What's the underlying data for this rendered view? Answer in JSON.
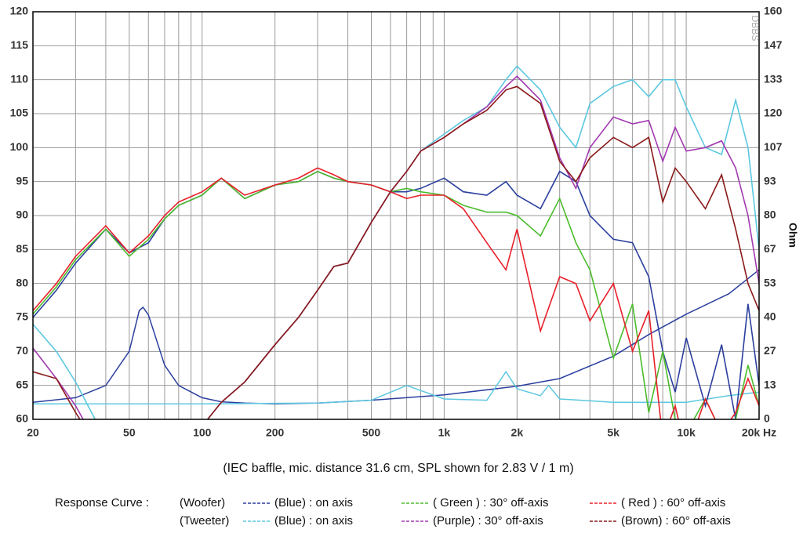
{
  "chart_data": {
    "type": "line",
    "xscale": "log",
    "subtitle": "(IEC baffle, mic. distance 31.6 cm, SPL shown for 2.83 V / 1 m)",
    "watermark": "DBBS",
    "y2label": "Ohm",
    "xlim": [
      20,
      20000
    ],
    "ylim": [
      60,
      120
    ],
    "y2lim": [
      0,
      160
    ],
    "xticks": [
      20,
      50,
      100,
      200,
      500,
      {
        "value": 1000,
        "label": "1k"
      },
      {
        "value": 2000,
        "label": "2k"
      },
      {
        "value": 5000,
        "label": "5k"
      },
      {
        "value": 10000,
        "label": "10k"
      },
      {
        "value": 20000,
        "label": "20k Hz"
      }
    ],
    "xgrid": [
      20,
      30,
      40,
      50,
      60,
      70,
      80,
      90,
      100,
      200,
      300,
      400,
      500,
      600,
      700,
      800,
      900,
      1000,
      2000,
      3000,
      4000,
      5000,
      6000,
      7000,
      8000,
      9000,
      10000,
      20000
    ],
    "yticks": [
      60,
      65,
      70,
      75,
      80,
      85,
      90,
      95,
      100,
      105,
      110,
      115,
      120
    ],
    "y2ticks": [
      0,
      {
        "value": 13.33,
        "label": "13"
      },
      {
        "value": 26.67,
        "label": "27"
      },
      40,
      {
        "value": 53.33,
        "label": "53"
      },
      {
        "value": 66.67,
        "label": "67"
      },
      80,
      {
        "value": 93.33,
        "label": "93"
      },
      {
        "value": 106.67,
        "label": "107"
      },
      120,
      {
        "value": 133.33,
        "label": "133"
      },
      {
        "value": 146.67,
        "label": "147"
      },
      160
    ],
    "grid": true,
    "legend_title": "Response Curve :",
    "legend_groups": [
      "(Woofer)",
      "(Tweeter)"
    ],
    "x": [
      20,
      25,
      30,
      40,
      50,
      60,
      70,
      80,
      100,
      120,
      150,
      200,
      250,
      300,
      350,
      400,
      500,
      600,
      700,
      800,
      1000,
      1200,
      1500,
      1800,
      2000,
      2500,
      3000,
      3500,
      4000,
      5000,
      6000,
      7000,
      8000,
      9000,
      10000,
      12000,
      14000,
      16000,
      18000,
      20000
    ],
    "series": [
      {
        "name": "(Blue)  : on axis",
        "color": "#2b3f9e",
        "values": [
          75,
          79,
          83,
          88,
          84.5,
          86,
          89.5,
          91.5,
          93,
          95.5,
          92.5,
          94.5,
          95,
          96.5,
          95.5,
          95,
          94.5,
          93.5,
          93.5,
          94,
          95.5,
          93.5,
          93,
          95,
          93,
          91,
          96.5,
          95,
          90,
          86.5,
          86,
          81,
          70,
          64,
          72,
          62,
          71,
          60,
          77,
          65
        ]
      },
      {
        "name": "( Green ) : 30° off-axis",
        "color": "#4cbc2c",
        "values": [
          75.5,
          79.5,
          83.5,
          88,
          84,
          86.5,
          89.5,
          91.5,
          93,
          95.5,
          92.5,
          94.5,
          95,
          96.5,
          95.5,
          95,
          94.5,
          93.5,
          94,
          93.5,
          93,
          91.5,
          90.5,
          90.5,
          90,
          87,
          92.5,
          86,
          82,
          69,
          77,
          61,
          70,
          60,
          58,
          63,
          58,
          60,
          68,
          62
        ]
      },
      {
        "name": "( Red ) : 60° off-axis",
        "color": "#e8202a",
        "values": [
          76,
          80,
          84,
          88.5,
          84.5,
          87,
          90,
          92,
          93.5,
          95.5,
          93,
          94.5,
          95.5,
          97,
          96,
          95,
          94.5,
          93.5,
          92.5,
          93,
          93,
          91,
          86,
          82,
          88,
          73,
          81,
          80,
          74.5,
          80,
          70,
          76,
          57,
          62,
          55,
          63,
          58,
          61,
          66,
          62
        ]
      },
      {
        "name": "(Blue) : on axis",
        "color": "#5cc8e0",
        "values": [
          74,
          70,
          65.5,
          57,
          50,
          50,
          52,
          55,
          59,
          62.5,
          65.5,
          71,
          75,
          79,
          82.5,
          83,
          89,
          93.5,
          96.5,
          99.5,
          102,
          104,
          106,
          110,
          112,
          108.5,
          103,
          100,
          106.5,
          109,
          110,
          107.5,
          110,
          110,
          106,
          100,
          99,
          107,
          100,
          85
        ]
      },
      {
        "name": "(Purple) : 30° off-axis",
        "color": "#a23ab0",
        "values": [
          70.5,
          66,
          62,
          54,
          50,
          50,
          52,
          55,
          59,
          62.5,
          65.5,
          71,
          75,
          79,
          82.5,
          83,
          89,
          93.5,
          96.5,
          99.5,
          101.5,
          103.5,
          106,
          109,
          110.5,
          107,
          98.5,
          94,
          100,
          104.5,
          103.5,
          104,
          98,
          103,
          99.5,
          100,
          101,
          97,
          90,
          80
        ]
      },
      {
        "name": "(Brown) : 60° off-axis",
        "color": "#8b1a1a",
        "values": [
          67,
          66,
          61,
          54,
          50,
          50,
          52,
          55,
          59,
          62.5,
          65.5,
          71,
          75,
          79,
          82.5,
          83,
          89,
          93.5,
          96.5,
          99.5,
          101.5,
          103.5,
          105.5,
          108.5,
          109,
          106.5,
          98,
          95,
          98.5,
          101.5,
          100,
          101.5,
          92,
          97,
          95,
          91,
          96,
          88,
          80,
          76
        ]
      }
    ],
    "impedance": [
      {
        "color": "#2b3f9e",
        "axis": "y2",
        "x": [
          20,
          30,
          40,
          50,
          55,
          57,
          60,
          70,
          80,
          100,
          120,
          150,
          200,
          300,
          500,
          1000,
          2000,
          3000,
          5000,
          7000,
          10000,
          15000,
          20000
        ],
        "values": [
          6.7,
          8.5,
          13.3,
          26.7,
          42.7,
          44,
          41,
          21.3,
          13.3,
          8.5,
          6.9,
          6.4,
          6.1,
          6.4,
          7.5,
          9.6,
          13,
          16,
          24.8,
          33.3,
          41.3,
          49.3,
          58.7
        ]
      },
      {
        "color": "#5cc8e0",
        "axis": "y2",
        "x": [
          20,
          100,
          300,
          500,
          700,
          1000,
          1500,
          1800,
          2000,
          2500,
          2700,
          3000,
          5000,
          10000,
          15000,
          20000
        ],
        "values": [
          6.1,
          6.1,
          6.4,
          7.5,
          13.3,
          8,
          7.5,
          18.7,
          12,
          9.3,
          13.3,
          8,
          6.7,
          6.7,
          9.3,
          10.7
        ]
      }
    ]
  }
}
